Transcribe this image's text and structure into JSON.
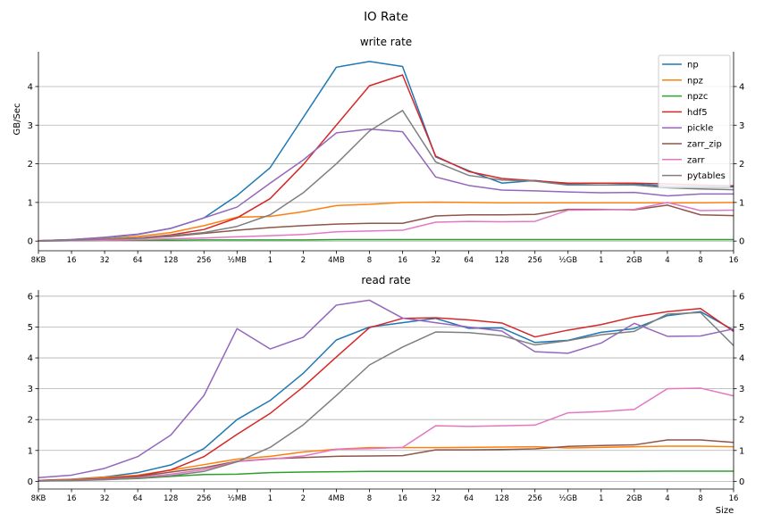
{
  "figure": {
    "suptitle": "IO Rate"
  },
  "legend_placement": "top-right (upper panel)",
  "colors": {
    "np": "#1f77b4",
    "npz": "#ff7f0e",
    "npzc": "#2ca02c",
    "hdf5": "#d62728",
    "pickle": "#9467bd",
    "zarr_zip": "#8c564b",
    "zarr": "#e377c2",
    "pytables": "#7f7f7f",
    "grid": "#b0b0b0"
  },
  "chart_data": [
    {
      "type": "line",
      "title": "write rate",
      "ylabel": "GB/Sec",
      "xlabel": "",
      "ylim": [
        -0.25,
        4.9
      ],
      "yticks": [
        0,
        1,
        2,
        3,
        4
      ],
      "grid": "horizontal",
      "right_axis_ticks": true,
      "categories": [
        "8KB",
        "16",
        "32",
        "64",
        "128",
        "256",
        "½MB",
        "1",
        "2",
        "4MB",
        "8",
        "16",
        "32",
        "64",
        "128",
        "256",
        "½GB",
        "1",
        "2GB",
        "4",
        "8",
        "16"
      ],
      "series": [
        {
          "name": "np",
          "values": [
            0.01,
            0.04,
            0.09,
            0.17,
            0.33,
            0.6,
            1.18,
            1.9,
            3.2,
            4.5,
            4.65,
            4.52,
            2.18,
            1.82,
            1.5,
            1.57,
            1.48,
            1.5,
            1.48,
            1.42,
            1.41,
            1.4
          ]
        },
        {
          "name": "npz",
          "values": [
            0.01,
            0.03,
            0.06,
            0.12,
            0.22,
            0.4,
            0.62,
            0.64,
            0.76,
            0.92,
            0.95,
            1.0,
            1.01,
            1.0,
            0.99,
            0.99,
            0.99,
            0.99,
            0.99,
            0.99,
            0.99,
            1.0
          ]
        },
        {
          "name": "npzc",
          "values": [
            0.0,
            0.01,
            0.02,
            0.02,
            0.02,
            0.03,
            0.03,
            0.03,
            0.03,
            0.04,
            0.04,
            0.04,
            0.04,
            0.04,
            0.04,
            0.04,
            0.04,
            0.04,
            0.04,
            0.04,
            0.04,
            0.04
          ]
        },
        {
          "name": "hdf5",
          "values": [
            0.01,
            0.02,
            0.04,
            0.08,
            0.16,
            0.3,
            0.6,
            1.1,
            1.98,
            3.0,
            4.02,
            4.3,
            2.2,
            1.8,
            1.62,
            1.56,
            1.5,
            1.5,
            1.5,
            1.48,
            1.45,
            1.43
          ]
        },
        {
          "name": "pickle",
          "values": [
            0.01,
            0.04,
            0.1,
            0.18,
            0.33,
            0.6,
            0.88,
            1.5,
            2.1,
            2.8,
            2.9,
            2.83,
            1.66,
            1.44,
            1.32,
            1.3,
            1.27,
            1.25,
            1.26,
            1.17,
            1.22,
            1.22
          ]
        },
        {
          "name": "zarr_zip",
          "values": [
            0.0,
            0.02,
            0.04,
            0.07,
            0.12,
            0.2,
            0.28,
            0.35,
            0.4,
            0.44,
            0.46,
            0.46,
            0.65,
            0.68,
            0.68,
            0.69,
            0.82,
            0.82,
            0.81,
            0.93,
            0.68,
            0.66
          ]
        },
        {
          "name": "zarr",
          "values": [
            0.0,
            0.01,
            0.02,
            0.04,
            0.06,
            0.08,
            0.11,
            0.14,
            0.17,
            0.24,
            0.26,
            0.28,
            0.49,
            0.51,
            0.5,
            0.51,
            0.8,
            0.81,
            0.82,
            1.0,
            0.79,
            0.8
          ]
        },
        {
          "name": "pytables",
          "values": [
            0.0,
            0.02,
            0.05,
            0.08,
            0.14,
            0.22,
            0.38,
            0.68,
            1.25,
            2.0,
            2.85,
            3.38,
            2.05,
            1.7,
            1.58,
            1.55,
            1.45,
            1.45,
            1.45,
            1.38,
            1.35,
            1.33
          ]
        }
      ]
    },
    {
      "type": "line",
      "title": "read rate",
      "ylabel": "",
      "xlabel": "Size",
      "ylim": [
        -0.25,
        6.2
      ],
      "yticks": [
        0,
        1,
        2,
        3,
        4,
        5,
        6
      ],
      "grid": "horizontal",
      "right_axis_ticks": true,
      "categories": [
        "8KB",
        "16",
        "32",
        "64",
        "128",
        "256",
        "½MB",
        "1",
        "2",
        "4MB",
        "8",
        "16",
        "32",
        "64",
        "128",
        "256",
        "½GB",
        "1",
        "2GB",
        "4",
        "8",
        "16"
      ],
      "series": [
        {
          "name": "np",
          "values": [
            0.03,
            0.07,
            0.14,
            0.28,
            0.53,
            1.06,
            2.0,
            2.62,
            3.5,
            4.58,
            5.0,
            5.14,
            5.28,
            4.96,
            4.97,
            4.5,
            4.57,
            4.83,
            4.95,
            5.37,
            5.5,
            4.9
          ]
        },
        {
          "name": "npz",
          "values": [
            0.03,
            0.06,
            0.13,
            0.2,
            0.36,
            0.54,
            0.72,
            0.81,
            0.95,
            1.04,
            1.09,
            1.09,
            1.09,
            1.1,
            1.11,
            1.12,
            1.08,
            1.1,
            1.12,
            1.14,
            1.14,
            1.12
          ]
        },
        {
          "name": "npzc",
          "values": [
            0.01,
            0.03,
            0.06,
            0.09,
            0.16,
            0.22,
            0.23,
            0.28,
            0.3,
            0.31,
            0.32,
            0.32,
            0.32,
            0.32,
            0.32,
            0.32,
            0.32,
            0.32,
            0.32,
            0.33,
            0.33,
            0.33
          ]
        },
        {
          "name": "hdf5",
          "values": [
            0.02,
            0.04,
            0.09,
            0.17,
            0.37,
            0.8,
            1.52,
            2.2,
            3.06,
            4.03,
            4.98,
            5.28,
            5.3,
            5.23,
            5.13,
            4.68,
            4.9,
            5.08,
            5.33,
            5.5,
            5.6,
            4.86
          ]
        },
        {
          "name": "pickle",
          "values": [
            0.12,
            0.2,
            0.42,
            0.8,
            1.5,
            2.78,
            4.95,
            4.29,
            4.67,
            5.71,
            5.87,
            5.29,
            5.14,
            5.0,
            4.87,
            4.2,
            4.15,
            4.48,
            5.12,
            4.7,
            4.71,
            4.94
          ]
        },
        {
          "name": "zarr_zip",
          "values": [
            0.01,
            0.04,
            0.08,
            0.15,
            0.3,
            0.44,
            0.65,
            0.73,
            0.77,
            0.81,
            0.82,
            0.83,
            1.02,
            1.02,
            1.03,
            1.05,
            1.13,
            1.16,
            1.18,
            1.34,
            1.34,
            1.26
          ]
        },
        {
          "name": "zarr",
          "values": [
            0.01,
            0.03,
            0.06,
            0.12,
            0.23,
            0.38,
            0.64,
            0.72,
            0.82,
            1.04,
            1.06,
            1.1,
            1.8,
            1.78,
            1.8,
            1.82,
            2.22,
            2.26,
            2.33,
            3.0,
            3.02,
            2.77
          ]
        },
        {
          "name": "pytables",
          "values": [
            0.01,
            0.02,
            0.05,
            0.1,
            0.18,
            0.32,
            0.63,
            1.1,
            1.83,
            2.78,
            3.77,
            4.35,
            4.84,
            4.82,
            4.72,
            4.42,
            4.56,
            4.75,
            4.86,
            5.42,
            5.47,
            4.4
          ]
        }
      ]
    }
  ]
}
